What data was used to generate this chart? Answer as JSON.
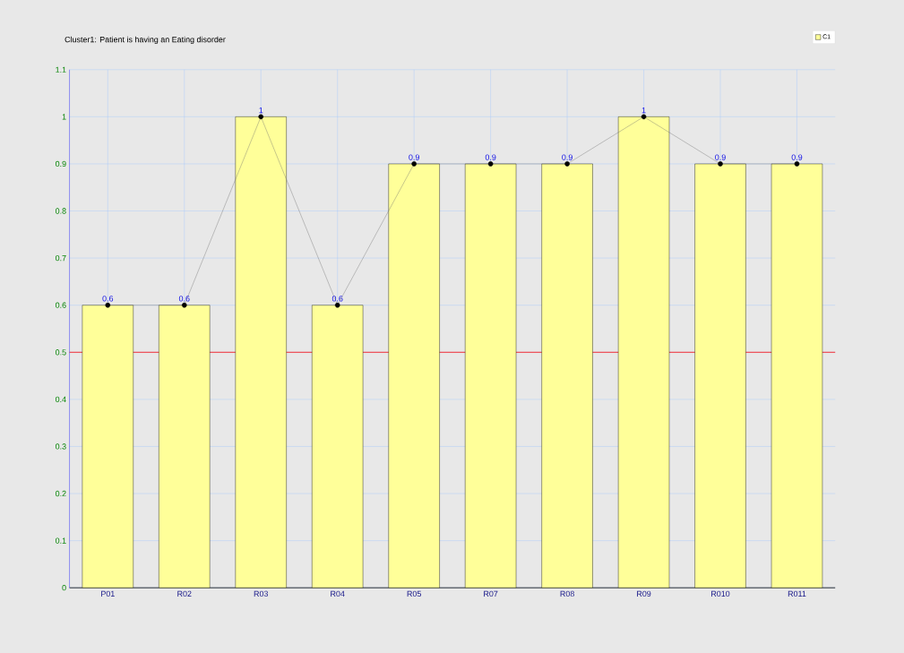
{
  "chart_data": {
    "type": "bar",
    "title": "Cluster1: Patient is having an Eating disorder",
    "categories": [
      "P01",
      "R02",
      "R03",
      "R04",
      "R05",
      "R07",
      "R08",
      "R09",
      "R010",
      "R011"
    ],
    "series": [
      {
        "name": "C1",
        "color": "#ffff99",
        "values": [
          0.6,
          0.6,
          1,
          0.6,
          0.9,
          0.9,
          0.9,
          1,
          0.9,
          0.9
        ],
        "value_labels": [
          "0.6",
          "0.6",
          "1",
          "0.6",
          "0.9",
          "0.9",
          "0.9",
          "1",
          "0.9",
          "0.9"
        ]
      },
      {
        "type": "line",
        "color": "#707070",
        "marker": "circle",
        "values": [
          0.6,
          0.6,
          1,
          0.6,
          0.9,
          0.9,
          0.9,
          1,
          0.9,
          0.9
        ]
      }
    ],
    "ylim": [
      0,
      1.1
    ],
    "yticks": [
      0,
      0.1,
      0.2,
      0.3,
      0.4,
      0.5,
      0.6,
      0.7,
      0.8,
      0.9,
      1,
      1.1
    ],
    "ref_lines": [
      {
        "axis": "y",
        "value": 0.5,
        "color": "#ff0000"
      }
    ],
    "grid": true,
    "legend": "top right"
  }
}
